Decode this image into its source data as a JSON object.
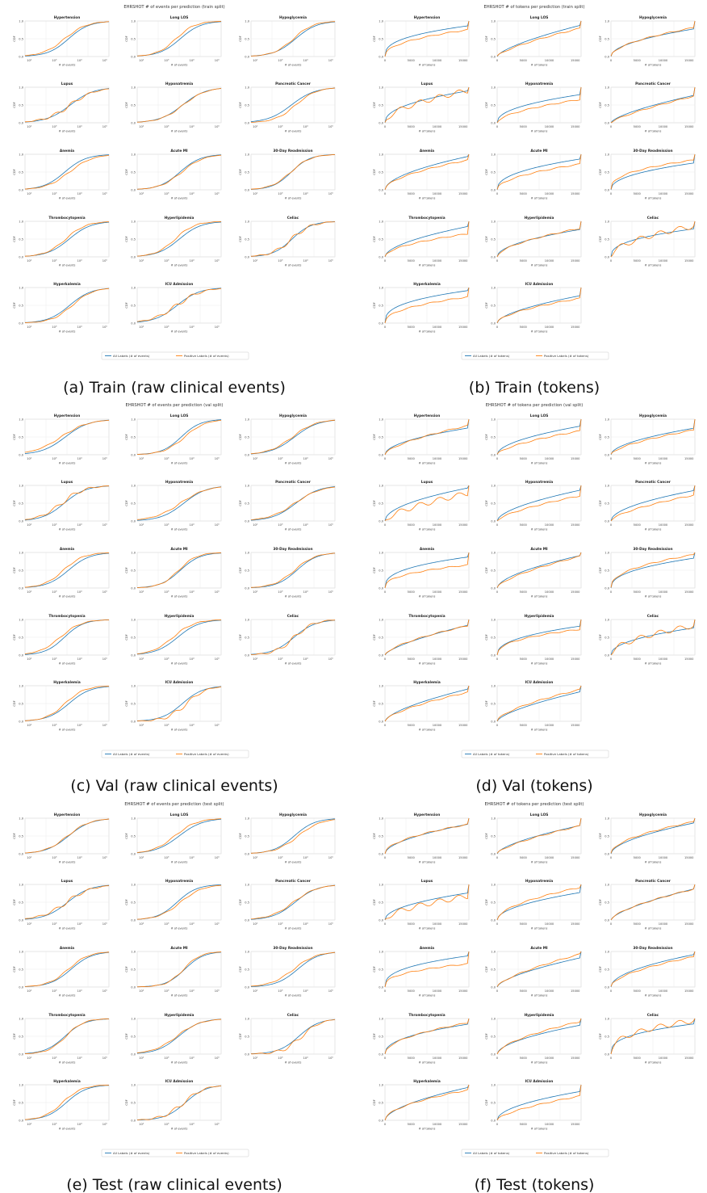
{
  "panels": [
    {
      "title": "EHRSHOT # of events per prediction (train split)",
      "caption": "(a) Train (raw clinical events)"
    },
    {
      "title": "EHRSHOT # of tokens per prediction (train split)",
      "caption": "(b) Train (tokens)"
    },
    {
      "title": "EHRSHOT # of events per prediction (val split)",
      "caption": "(c) Val (raw clinical events)"
    },
    {
      "title": "EHRSHOT # of tokens per prediction (val split)",
      "caption": "(d) Val (tokens)"
    },
    {
      "title": "EHRSHOT # of events per prediction (test split)",
      "caption": "(e) Test (raw clinical events)"
    },
    {
      "title": "EHRSHOT # of tokens per prediction (test split)",
      "caption": "(f) Test (tokens)"
    }
  ],
  "chart_data": [
    {
      "type": "line",
      "grid": true,
      "legend_position": "bottom-center",
      "y_label": "CDF",
      "y_ticks": [
        "0.0",
        "0.5",
        "1.0"
      ],
      "subplot_titles": [
        "Hypertension",
        "Long LOS",
        "Hypoglycemia",
        "Lupus",
        "Hyponatremia",
        "Pancreatic Cancer",
        "Anemia",
        "Acute MI",
        "30-Day Readmission",
        "Thrombocytopenia",
        "Hyperlipidemia",
        "Celiac",
        "Hyperkalemia",
        "ICU Admission"
      ],
      "events_plot": {
        "x_label": "# of events",
        "x_scale": "log",
        "x_ticks": [
          "10²",
          "10³",
          "10⁴",
          "10⁵"
        ],
        "legend": [
          "All Labels (# of events)",
          "Positive Labels (# of events)"
        ]
      },
      "tokens_plot": {
        "x_label": "# of tokens",
        "x_scale": "linear",
        "x_ticks": [
          "0",
          "5000",
          "10000",
          "15000"
        ],
        "legend": [
          "All Labels (# of tokens)",
          "Positive Labels (# of tokens)"
        ]
      },
      "series_colors": {
        "all": "#1f77b4",
        "positive": "#ff7f0e"
      }
    }
  ]
}
